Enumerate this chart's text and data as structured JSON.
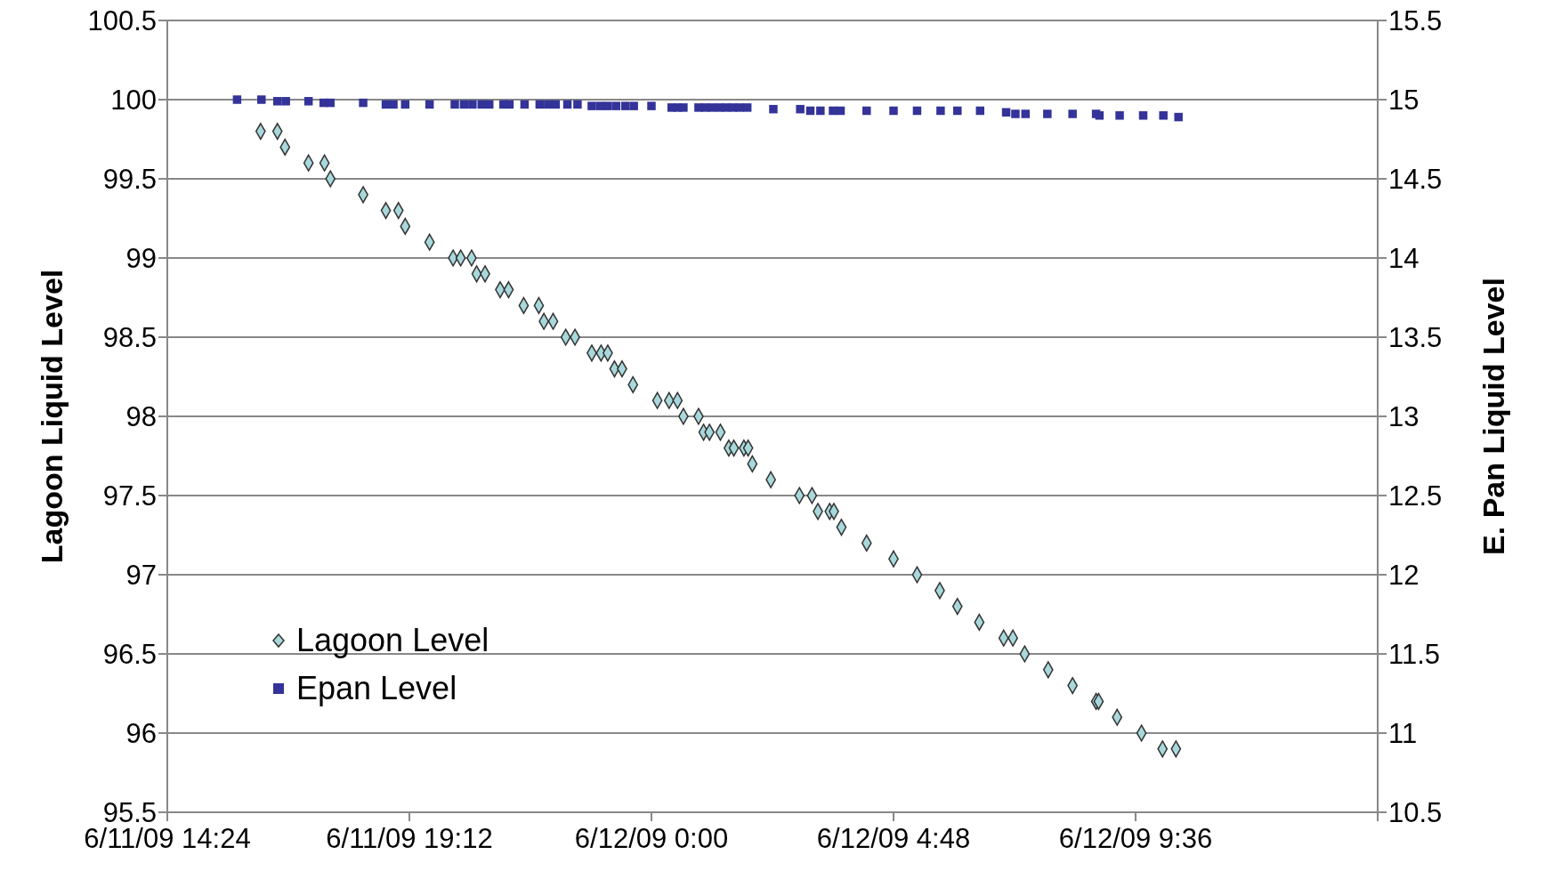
{
  "chart_data": {
    "type": "scatter",
    "ylabel": "Lagoon Liquid Level",
    "y2label": "E. Pan Liquid Level",
    "xlim": [
      "--06-11T14:24",
      "--06-12T14:24"
    ],
    "xticks": [
      {
        "value": "--06-11T14:24",
        "label": "6/11/09 14:24"
      },
      {
        "value": "--06-11T19:12",
        "label": "6/11/09 19:12"
      },
      {
        "value": "--06-12T00:00",
        "label": "6/12/09 0:00"
      },
      {
        "value": "--06-12T04:48",
        "label": "6/12/09 4:48"
      },
      {
        "value": "--06-12T09:36",
        "label": "6/12/09 9:36"
      },
      {
        "value": "--06-12T14:24",
        "label": null
      }
    ],
    "ylim": [
      95.5,
      100.5
    ],
    "yticks": [
      95.5,
      96,
      96.5,
      97,
      97.5,
      98,
      98.5,
      99,
      99.5,
      100,
      100.5
    ],
    "y2lim": [
      10.5,
      15.5
    ],
    "y2ticks": [
      10.5,
      11,
      11.5,
      12,
      12.5,
      13,
      13.5,
      14,
      14.5,
      15,
      15.5
    ],
    "grid": "y",
    "legend": "bottom left",
    "series": [
      {
        "name": "Lagoon Level",
        "color": "#a8d8dc",
        "marker": "diamond",
        "x": [
          "--06-11T16:15",
          "--06-11T16:35",
          "--06-11T16:44",
          "--06-11T17:12",
          "--06-11T17:31",
          "--06-11T17:38",
          "--06-11T18:17",
          "--06-11T18:44",
          "--06-11T18:59",
          "--06-11T19:07",
          "--06-11T19:36",
          "--06-11T20:04",
          "--06-11T20:13",
          "--06-11T20:26",
          "--06-11T20:32",
          "--06-11T20:42",
          "--06-11T21:00",
          "--06-11T21:10",
          "--06-11T21:28",
          "--06-11T21:46",
          "--06-11T21:52",
          "--06-11T22:03",
          "--06-11T22:18",
          "--06-11T22:29",
          "--06-11T22:49",
          "--06-11T23:00",
          "--06-11T23:08",
          "--06-11T23:16",
          "--06-11T23:25",
          "--06-11T23:38",
          "--06-12T00:07",
          "--06-12T00:21",
          "--06-12T00:31",
          "--06-12T00:38",
          "--06-12T00:56",
          "--06-12T01:02",
          "--06-12T01:09",
          "--06-12T01:22",
          "--06-12T01:32",
          "--06-12T01:38",
          "--06-12T01:50",
          "--06-12T01:55",
          "--06-12T02:00",
          "--06-12T02:22",
          "--06-12T02:56",
          "--06-12T03:11",
          "--06-12T03:18",
          "--06-12T03:32",
          "--06-12T03:37",
          "--06-12T03:46",
          "--06-12T04:16",
          "--06-12T04:48",
          "--06-12T05:16",
          "--06-12T05:43",
          "--06-12T06:04",
          "--06-12T06:30",
          "--06-12T06:59",
          "--06-12T07:10",
          "--06-12T07:24",
          "--06-12T07:52",
          "--06-12T08:21",
          "--06-12T08:49",
          "--06-12T08:52",
          "--06-12T09:14",
          "--06-12T09:43",
          "--06-12T10:08",
          "--06-12T10:24"
        ],
        "values": [
          99.8,
          99.8,
          99.7,
          99.6,
          99.6,
          99.5,
          99.4,
          99.3,
          99.3,
          99.2,
          99.1,
          99.0,
          99.0,
          99.0,
          98.9,
          98.9,
          98.8,
          98.8,
          98.7,
          98.7,
          98.6,
          98.6,
          98.5,
          98.5,
          98.4,
          98.4,
          98.4,
          98.3,
          98.3,
          98.2,
          98.1,
          98.1,
          98.1,
          98.0,
          98.0,
          97.9,
          97.9,
          97.9,
          97.8,
          97.8,
          97.8,
          97.8,
          97.7,
          97.6,
          97.5,
          97.5,
          97.4,
          97.4,
          97.4,
          97.3,
          97.2,
          97.1,
          97.0,
          96.9,
          96.8,
          96.7,
          96.6,
          96.6,
          96.5,
          96.4,
          96.3,
          96.2,
          96.2,
          96.1,
          96.0,
          95.9,
          95.9
        ]
      },
      {
        "name": "Epan Level",
        "color": "#333399",
        "marker": "square",
        "axis": "y2",
        "x": [
          "--06-11T15:47",
          "--06-11T16:16",
          "--06-11T16:35",
          "--06-11T16:45",
          "--06-11T17:12",
          "--06-11T17:30",
          "--06-11T17:38",
          "--06-11T18:17",
          "--06-11T18:44",
          "--06-11T18:53",
          "--06-11T19:07",
          "--06-11T19:36",
          "--06-11T20:06",
          "--06-11T20:17",
          "--06-11T20:27",
          "--06-11T20:38",
          "--06-11T20:47",
          "--06-11T21:04",
          "--06-11T21:11",
          "--06-11T21:29",
          "--06-11T21:47",
          "--06-11T21:57",
          "--06-11T22:06",
          "--06-11T22:20",
          "--06-11T22:32",
          "--06-11T22:49",
          "--06-11T22:59",
          "--06-11T23:08",
          "--06-11T23:18",
          "--06-11T23:29",
          "--06-11T23:39",
          "--06-12T00:00",
          "--06-12T00:24",
          "--06-12T00:31",
          "--06-12T00:38",
          "--06-12T00:56",
          "--06-12T01:04",
          "--06-12T01:12",
          "--06-12T01:21",
          "--06-12T01:29",
          "--06-12T01:37",
          "--06-12T01:45",
          "--06-12T01:54",
          "--06-12T02:25",
          "--06-12T02:57",
          "--06-12T03:09",
          "--06-12T03:21",
          "--06-12T03:36",
          "--06-12T03:45",
          "--06-12T04:16",
          "--06-12T04:48",
          "--06-12T05:16",
          "--06-12T05:44",
          "--06-12T06:04",
          "--06-12T06:31",
          "--06-12T07:02",
          "--06-12T07:13",
          "--06-12T07:25",
          "--06-12T07:51",
          "--06-12T08:21",
          "--06-12T08:49",
          "--06-12T08:53",
          "--06-12T09:17",
          "--06-12T09:45",
          "--06-12T10:09",
          "--06-12T10:27"
        ],
        "values": [
          15.0,
          15.0,
          14.99,
          14.99,
          14.99,
          14.98,
          14.98,
          14.98,
          14.97,
          14.97,
          14.97,
          14.97,
          14.97,
          14.97,
          14.97,
          14.97,
          14.97,
          14.97,
          14.97,
          14.97,
          14.97,
          14.97,
          14.97,
          14.97,
          14.97,
          14.96,
          14.96,
          14.96,
          14.96,
          14.96,
          14.96,
          14.96,
          14.95,
          14.95,
          14.95,
          14.95,
          14.95,
          14.95,
          14.95,
          14.95,
          14.95,
          14.95,
          14.95,
          14.94,
          14.94,
          14.93,
          14.93,
          14.93,
          14.93,
          14.93,
          14.93,
          14.93,
          14.93,
          14.93,
          14.93,
          14.92,
          14.91,
          14.91,
          14.91,
          14.91,
          14.91,
          14.9,
          14.9,
          14.9,
          14.9,
          14.89
        ]
      }
    ]
  }
}
